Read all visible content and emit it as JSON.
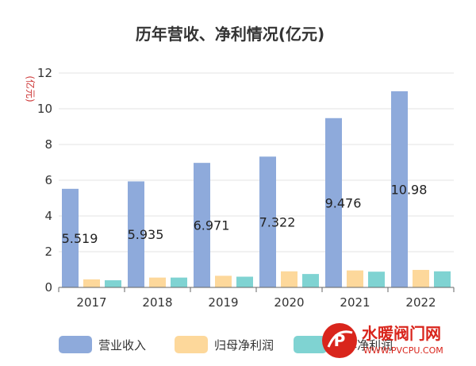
{
  "chart_data": {
    "type": "bar",
    "title": "历年营收、净利情况(亿元)",
    "xlabel": "",
    "ylabel": "(亿元)",
    "ylim": [
      0,
      12
    ],
    "yticks": [
      0,
      2,
      4,
      6,
      8,
      10,
      12
    ],
    "grid": true,
    "categories": [
      "2017",
      "2018",
      "2019",
      "2020",
      "2021",
      "2022"
    ],
    "series": [
      {
        "name": "营业收入",
        "values": [
          5.519,
          5.935,
          6.971,
          7.322,
          9.476,
          10.98
        ],
        "color": "#8eaadb"
      },
      {
        "name": "归母净利润",
        "values": [
          0.45,
          0.55,
          0.65,
          0.9,
          0.95,
          0.98
        ],
        "color": "#fdd89b"
      },
      {
        "name": "扣非净利润",
        "values": [
          0.4,
          0.55,
          0.6,
          0.75,
          0.88,
          0.9
        ],
        "color": "#7fd3d2"
      }
    ],
    "data_labels": [
      "5.519",
      "5.935",
      "6.971",
      "7.322",
      "9.476",
      "10.98"
    ],
    "legend_position": "bottom"
  },
  "watermark": {
    "brand_text": "水暖阀门网",
    "url_text": "WWW.PVCPU.COM",
    "logo_letter": "P",
    "color": "#d9251c"
  }
}
